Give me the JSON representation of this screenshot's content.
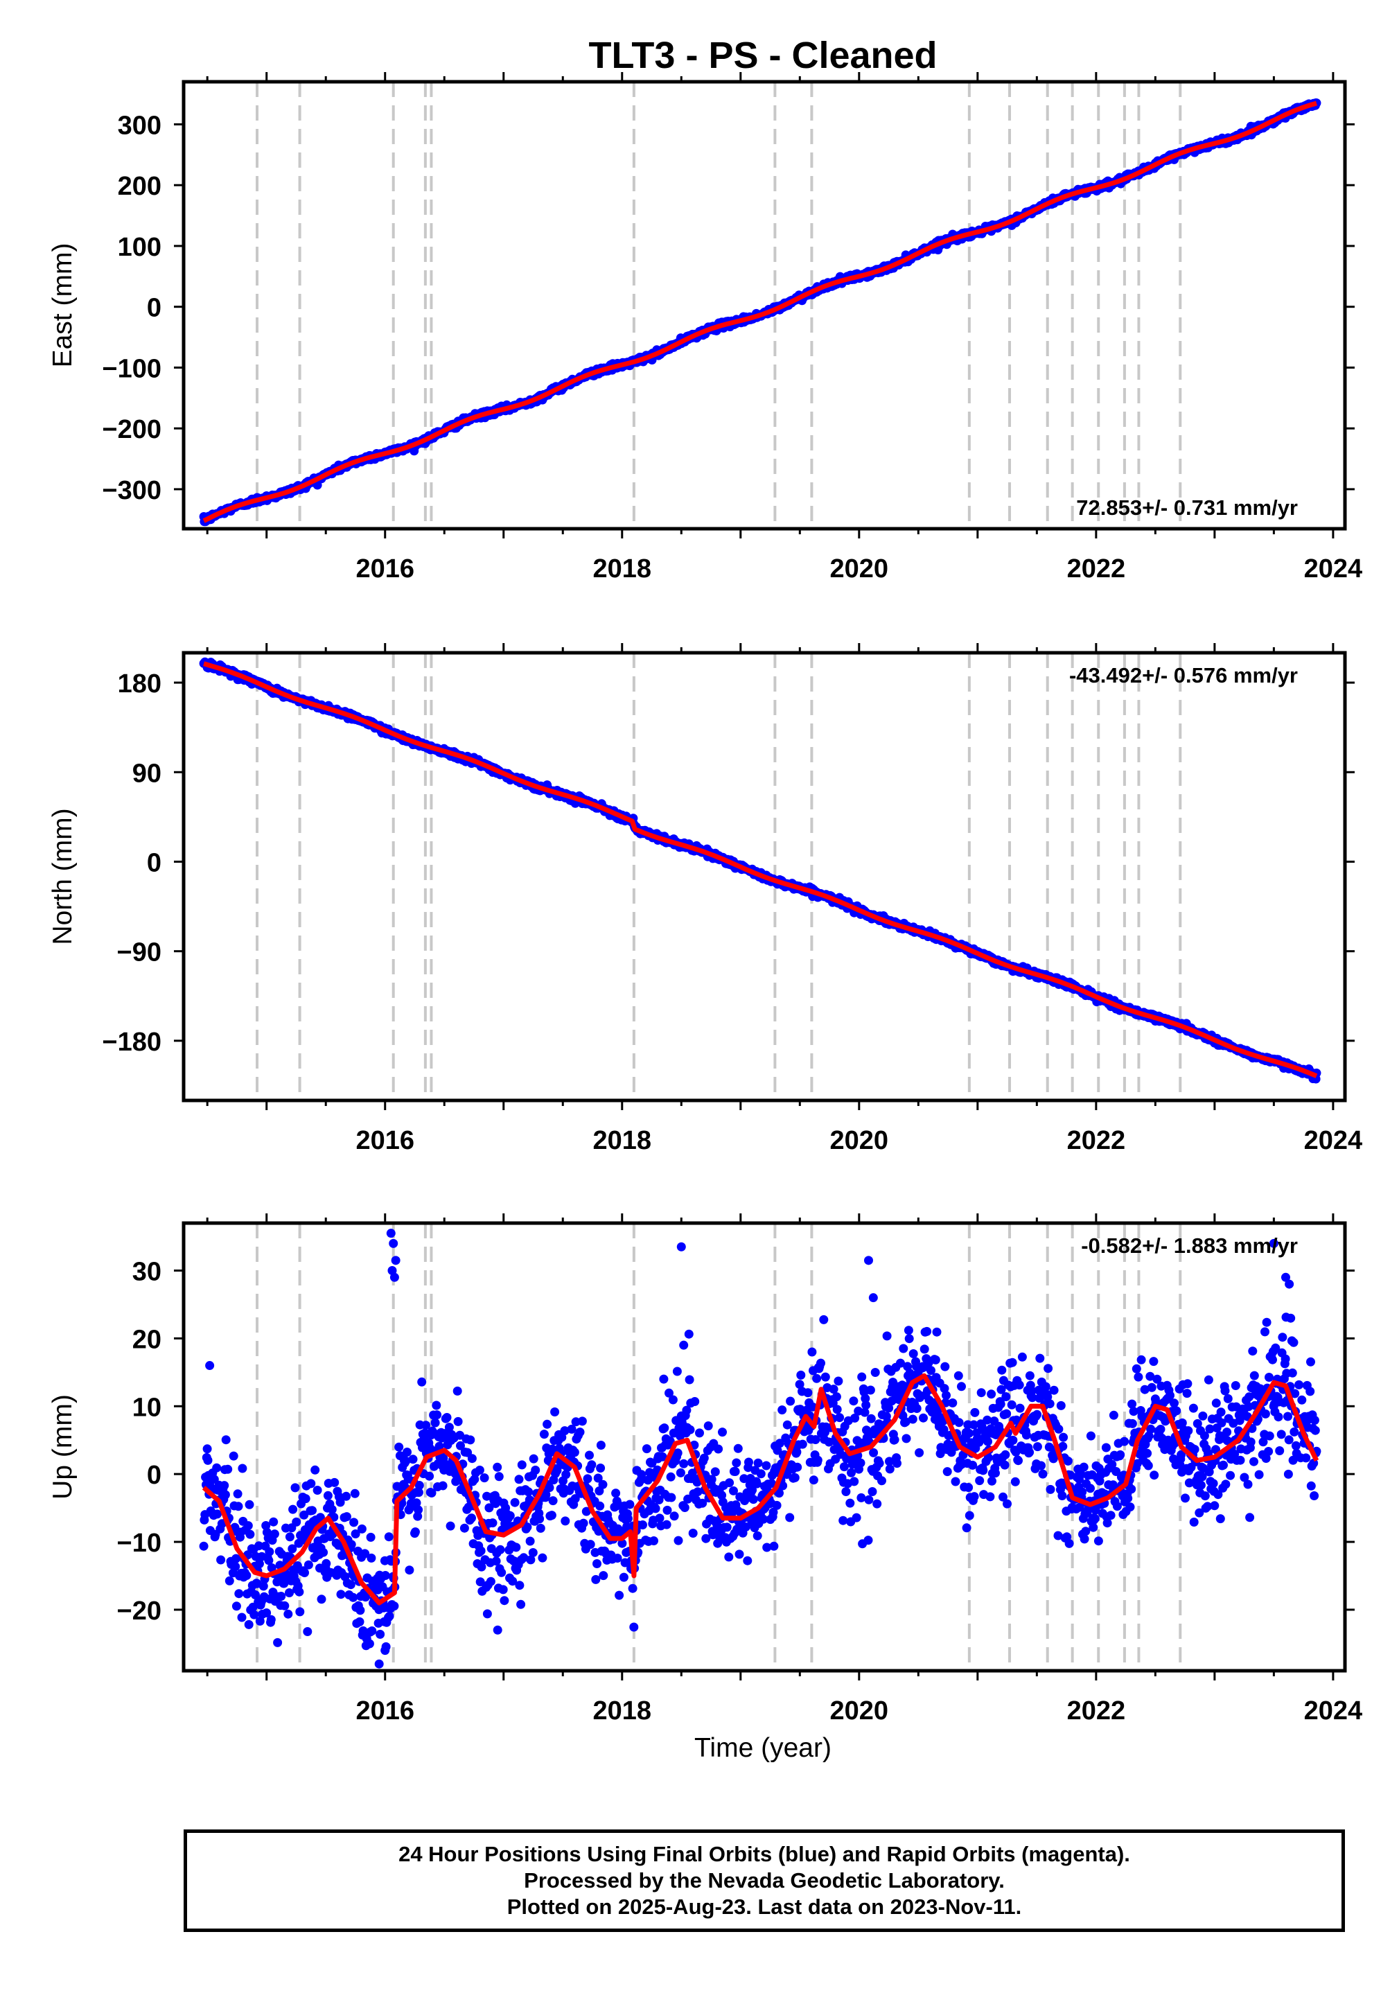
{
  "title": "TLT3  - PS - Cleaned",
  "xlabel": "Time (year)",
  "footer_lines": [
    "24 Hour Positions Using Final Orbits (blue) and Rapid Orbits (magenta).",
    "Processed by the Nevada Geodetic Laboratory.",
    "Plotted on 2025-Aug-23. Last data on 2023-Nov-11."
  ],
  "colors": {
    "points": "#0000ff",
    "model": "#ff0000",
    "steps": "#c8c8c8",
    "axis": "#000000"
  },
  "chart_data": [
    {
      "type": "scatter",
      "ylabel": "East (mm)",
      "rate": "72.853+/- 0.731 mm/yr",
      "rate_position": "bottom-right",
      "xlim": [
        2014.3,
        2024.1
      ],
      "ylim": [
        -365,
        370
      ],
      "yticks": [
        -300,
        -200,
        -100,
        0,
        100,
        200,
        300
      ],
      "xticks": [
        2016,
        2018,
        2020,
        2022,
        2024
      ],
      "x_start": 2014.47,
      "x_end": 2023.86,
      "model_y_at_start": -352,
      "slope": 72.853,
      "wiggle_amplitude": 4,
      "model_steps": [],
      "noise": 2.5,
      "outliers": []
    },
    {
      "type": "scatter",
      "ylabel": "North (mm)",
      "rate": "-43.492+/- 0.576 mm/yr",
      "rate_position": "top-right",
      "xlim": [
        2014.3,
        2024.1
      ],
      "ylim": [
        -240,
        210
      ],
      "yticks": [
        -180,
        -90,
        0,
        90,
        180
      ],
      "xticks": [
        2016,
        2018,
        2020,
        2022,
        2024
      ],
      "x_start": 2014.47,
      "x_end": 2023.86,
      "model_y_at_start": 199,
      "slope": -43.492,
      "wiggle_amplitude": 1.5,
      "model_steps": [
        [
          2018.1,
          -7
        ]
      ],
      "noise": 1.6,
      "outliers": []
    },
    {
      "type": "scatter",
      "ylabel": "Up (mm)",
      "rate": "-0.582+/- 1.883 mm/yr",
      "rate_position": "top-right",
      "xlim": [
        2014.3,
        2024.1
      ],
      "ylim": [
        -29,
        37
      ],
      "yticks": [
        -20,
        -10,
        0,
        10,
        20,
        30
      ],
      "xticks": [
        2016,
        2018,
        2020,
        2022,
        2024
      ],
      "x_start": 2014.47,
      "x_end": 2023.86,
      "model_points": [
        [
          2014.47,
          -2
        ],
        [
          2014.6,
          -4
        ],
        [
          2014.75,
          -11
        ],
        [
          2014.9,
          -14.5
        ],
        [
          2015.0,
          -15
        ],
        [
          2015.15,
          -14
        ],
        [
          2015.3,
          -11.5
        ],
        [
          2015.42,
          -8
        ],
        [
          2015.52,
          -6.5
        ],
        [
          2015.65,
          -10
        ],
        [
          2015.8,
          -16
        ],
        [
          2015.95,
          -19
        ],
        [
          2016.08,
          -17.5
        ],
        [
          2016.1,
          -4
        ],
        [
          2016.22,
          -2
        ],
        [
          2016.35,
          2.5
        ],
        [
          2016.5,
          3.5
        ],
        [
          2016.6,
          2
        ],
        [
          2016.72,
          -3
        ],
        [
          2016.85,
          -8.5
        ],
        [
          2017.0,
          -9
        ],
        [
          2017.15,
          -7.5
        ],
        [
          2017.3,
          -3
        ],
        [
          2017.45,
          3
        ],
        [
          2017.6,
          1
        ],
        [
          2017.75,
          -5.5
        ],
        [
          2017.9,
          -9.5
        ],
        [
          2018.0,
          -9.5
        ],
        [
          2018.07,
          -8.5
        ],
        [
          2018.1,
          -15
        ],
        [
          2018.12,
          -5
        ],
        [
          2018.3,
          -1
        ],
        [
          2018.45,
          4.5
        ],
        [
          2018.55,
          5
        ],
        [
          2018.7,
          -2
        ],
        [
          2018.85,
          -6.5
        ],
        [
          2019.0,
          -6.5
        ],
        [
          2019.15,
          -5
        ],
        [
          2019.3,
          -2
        ],
        [
          2019.45,
          5
        ],
        [
          2019.55,
          8.5
        ],
        [
          2019.62,
          7
        ],
        [
          2019.68,
          12.5
        ],
        [
          2019.8,
          6
        ],
        [
          2019.92,
          3
        ],
        [
          2020.1,
          4
        ],
        [
          2020.3,
          8
        ],
        [
          2020.45,
          13.5
        ],
        [
          2020.55,
          14.5
        ],
        [
          2020.7,
          10
        ],
        [
          2020.85,
          4
        ],
        [
          2021.0,
          2.5
        ],
        [
          2021.15,
          4
        ],
        [
          2021.28,
          7.5
        ],
        [
          2021.32,
          6
        ],
        [
          2021.45,
          10
        ],
        [
          2021.55,
          10
        ],
        [
          2021.65,
          5
        ],
        [
          2021.8,
          -3.5
        ],
        [
          2021.95,
          -4.5
        ],
        [
          2022.1,
          -3.5
        ],
        [
          2022.25,
          -1.5
        ],
        [
          2022.35,
          5
        ],
        [
          2022.5,
          10
        ],
        [
          2022.6,
          9.5
        ],
        [
          2022.72,
          4
        ],
        [
          2022.85,
          2
        ],
        [
          2023.0,
          2.5
        ],
        [
          2023.2,
          5
        ],
        [
          2023.35,
          9
        ],
        [
          2023.5,
          13.5
        ],
        [
          2023.6,
          13
        ],
        [
          2023.75,
          6
        ],
        [
          2023.86,
          2
        ]
      ],
      "noise": 4.5,
      "outliers": [
        [
          2016.05,
          35.5
        ],
        [
          2016.07,
          34
        ],
        [
          2016.09,
          31.5
        ],
        [
          2016.06,
          30
        ],
        [
          2016.08,
          29
        ],
        [
          2018.5,
          33.5
        ],
        [
          2018.52,
          19
        ],
        [
          2014.52,
          16
        ],
        [
          2020.08,
          31.5
        ],
        [
          2020.12,
          26
        ],
        [
          2023.6,
          29
        ],
        [
          2023.63,
          28
        ],
        [
          2023.5,
          34
        ],
        [
          2015.95,
          -28
        ],
        [
          2016.0,
          -26
        ],
        [
          2016.95,
          -23
        ]
      ]
    }
  ],
  "step_lines": [
    2014.92,
    2015.28,
    2016.07,
    2016.34,
    2016.39,
    2018.1,
    2019.29,
    2019.6,
    2020.93,
    2021.27,
    2021.59,
    2021.8,
    2022.02,
    2022.24,
    2022.36,
    2022.71
  ]
}
